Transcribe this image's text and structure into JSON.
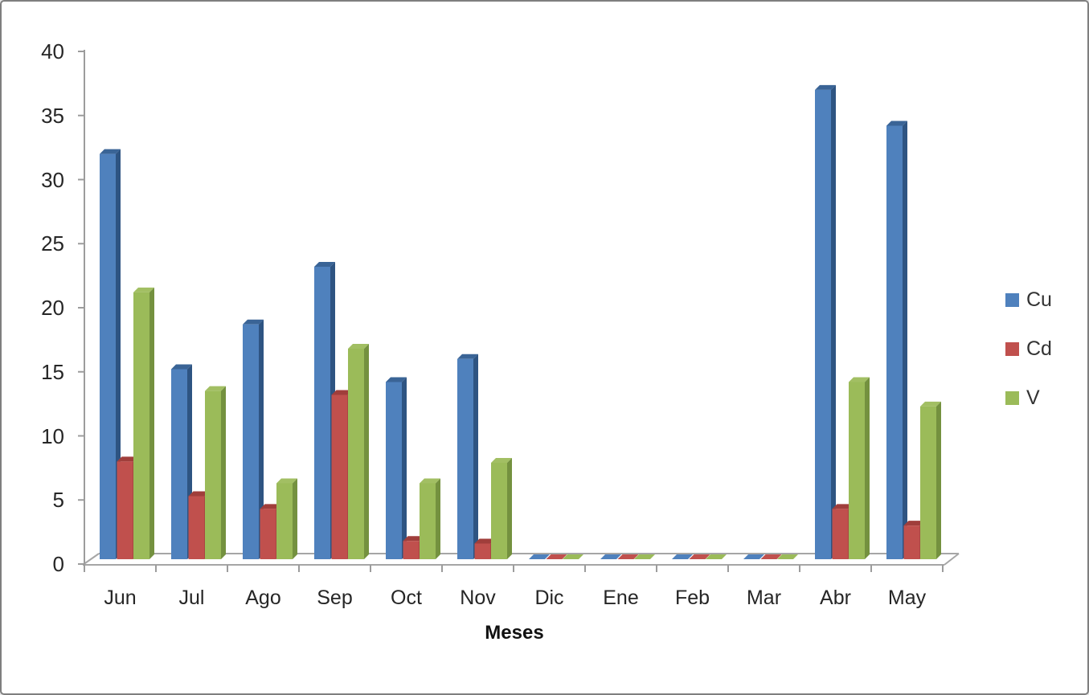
{
  "chart_data": {
    "type": "bar",
    "effect": "3d-clustered-column",
    "title": "",
    "xlabel": "Meses",
    "ylabel": "",
    "ylim": [
      0,
      40
    ],
    "ytick_step": 5,
    "ytick_labels": [
      "0",
      "5",
      "10",
      "15",
      "20",
      "25",
      "30",
      "35",
      "40"
    ],
    "grid": false,
    "legend_position": "right",
    "categories": [
      "Jun",
      "Jul",
      "Ago",
      "Sep",
      "Oct",
      "Nov",
      "Dic",
      "Ene",
      "Feb",
      "Mar",
      "Abr",
      "May"
    ],
    "series": [
      {
        "name": "Cu",
        "color": "#4f81bd",
        "color_top": "#3a6496",
        "color_side": "#2e5482",
        "values": [
          32,
          15.2,
          18.7,
          23.2,
          14.2,
          16,
          0,
          0,
          0,
          0,
          37,
          34.2
        ]
      },
      {
        "name": "Cd",
        "color": "#c0504d",
        "color_top": "#a03e3b",
        "color_side": "#943a38",
        "values": [
          8,
          5.3,
          4.3,
          13.2,
          1.8,
          1.6,
          0,
          0,
          0,
          0,
          4.3,
          3
        ]
      },
      {
        "name": "V",
        "color": "#9bbb59",
        "color_top": "#a2bf63",
        "color_side": "#74913f",
        "values": [
          21.2,
          13.5,
          6.3,
          16.8,
          6.3,
          7.9,
          0,
          0,
          0,
          0,
          14.2,
          12.3
        ]
      }
    ],
    "axis_color": "#9c9c9c",
    "floor_color": "#a6a6a6"
  }
}
